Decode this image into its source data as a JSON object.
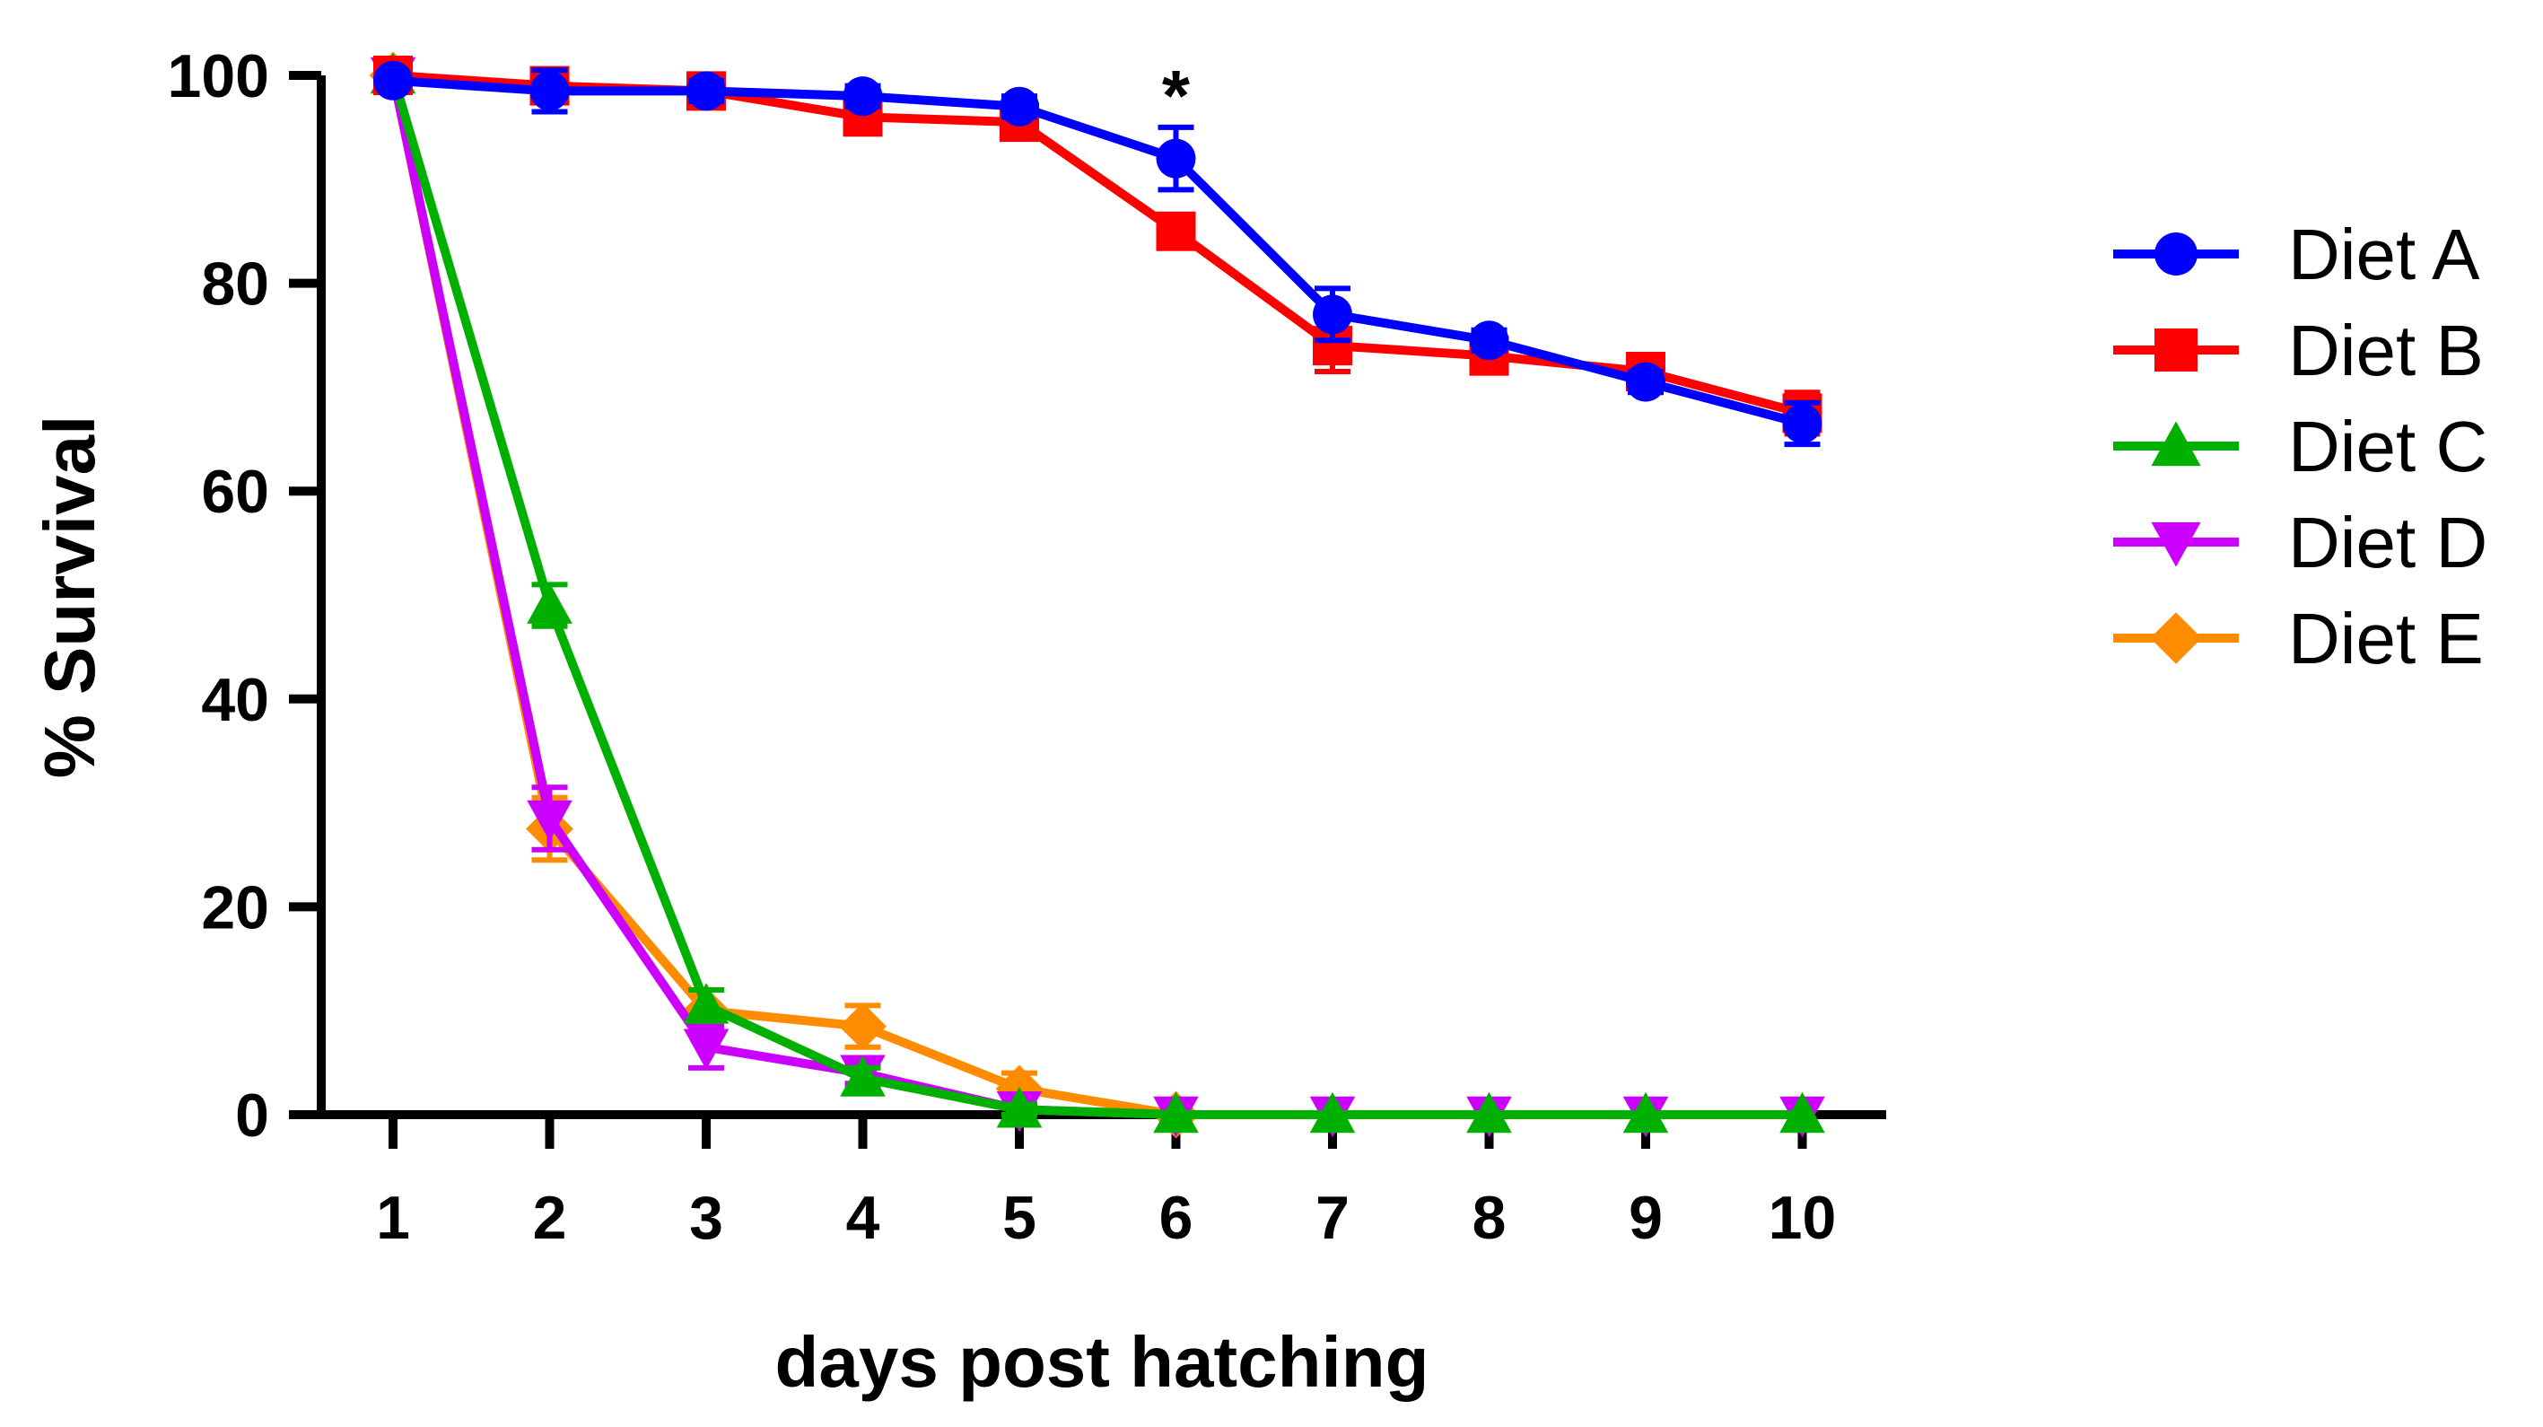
{
  "chart_data": {
    "type": "line",
    "title": "",
    "xlabel": "days post hatching",
    "ylabel": "% Survival",
    "x": [
      1,
      2,
      3,
      4,
      5,
      6,
      7,
      8,
      9,
      10
    ],
    "xlim": [
      0.5,
      10.5
    ],
    "ylim": [
      0,
      100
    ],
    "yticks": [
      0,
      20,
      40,
      60,
      80,
      100
    ],
    "xticks": [
      1,
      2,
      3,
      4,
      5,
      6,
      7,
      8,
      9,
      10
    ],
    "legend_position": "right",
    "series": [
      {
        "name": "Diet A",
        "color": "#0000FF",
        "marker": "circle",
        "values": [
          99.5,
          98.5,
          98.5,
          98,
          97,
          92,
          77,
          74.5,
          70.5,
          66.5
        ],
        "errors": [
          0.5,
          2,
          1,
          1,
          1,
          3,
          2.5,
          1,
          1,
          2
        ]
      },
      {
        "name": "Diet B",
        "color": "#FF0000",
        "marker": "square",
        "values": [
          100,
          99,
          98.5,
          96,
          95.5,
          85,
          74,
          73,
          71.5,
          67.5
        ],
        "errors": [
          0.5,
          1,
          1,
          1,
          1,
          1,
          2.5,
          1,
          1,
          2
        ]
      },
      {
        "name": "Diet C",
        "color": "#00B000",
        "marker": "triangle-up",
        "values": [
          100,
          49,
          10.5,
          3.5,
          0.5,
          0,
          0,
          0,
          0,
          0
        ],
        "errors": [
          0.5,
          2,
          1.5,
          1,
          0.5,
          0,
          0,
          0,
          0,
          0
        ]
      },
      {
        "name": "Diet D",
        "color": "#CC00FF",
        "marker": "triangle-down",
        "values": [
          100,
          28.5,
          6.5,
          4,
          0.5,
          0,
          0,
          0,
          0,
          0
        ],
        "errors": [
          0.5,
          3,
          2,
          1,
          0.5,
          0,
          0,
          0,
          0,
          0
        ]
      },
      {
        "name": "Diet E",
        "color": "#FF8C00",
        "marker": "diamond",
        "values": [
          100,
          27.5,
          10,
          8.5,
          2.5,
          0,
          null,
          null,
          null,
          null
        ],
        "errors": [
          0.5,
          3,
          2,
          2,
          1.5,
          0,
          null,
          null,
          null,
          null
        ]
      }
    ],
    "annotations": [
      {
        "text": "*",
        "x": 6,
        "y": 100
      }
    ]
  }
}
